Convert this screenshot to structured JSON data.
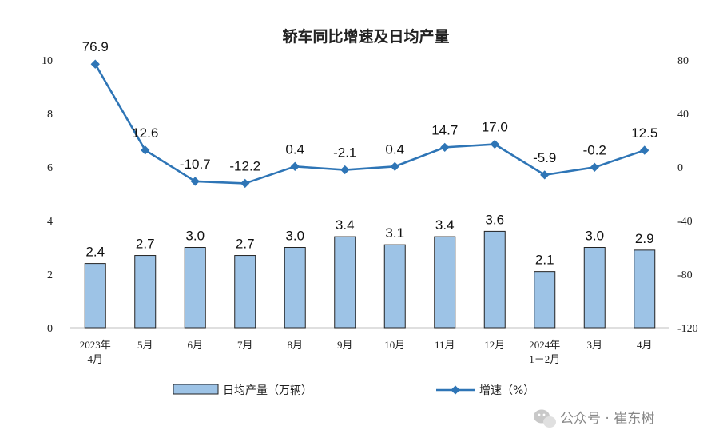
{
  "chart_data": {
    "type": "bar+line",
    "title": "轿车同比增速及日均产量",
    "categories": [
      [
        "2023年",
        "4月"
      ],
      [
        "5月"
      ],
      [
        "6月"
      ],
      [
        "7月"
      ],
      [
        "8月"
      ],
      [
        "9月"
      ],
      [
        "10月"
      ],
      [
        "11月"
      ],
      [
        "12月"
      ],
      [
        "2024年",
        "1－2月"
      ],
      [
        "3月"
      ],
      [
        "4月"
      ]
    ],
    "series": [
      {
        "name": "日均产量（万辆）",
        "type": "bar",
        "axis": "left",
        "color": "#9dc3e6",
        "values": [
          2.4,
          2.7,
          3.0,
          2.7,
          3.0,
          3.4,
          3.1,
          3.4,
          3.6,
          2.1,
          3.0,
          2.9
        ],
        "labels": [
          "2.4",
          "2.7",
          "3.0",
          "2.7",
          "3.0",
          "3.4",
          "3.1",
          "3.4",
          "3.6",
          "2.1",
          "3.0",
          "2.9"
        ]
      },
      {
        "name": "增速（%）",
        "type": "line",
        "axis": "right",
        "color": "#2e75b6",
        "values": [
          76.9,
          12.6,
          -10.7,
          -12.2,
          0.4,
          -2.1,
          0.4,
          14.7,
          17.0,
          -5.9,
          -0.2,
          12.5
        ],
        "labels": [
          "76.9",
          "12.6",
          "-10.7",
          "-12.2",
          "0.4",
          "-2.1",
          "0.4",
          "14.7",
          "17.0",
          "-5.9",
          "-0.2",
          "12.5"
        ]
      }
    ],
    "y_left": {
      "min": 0,
      "max": 10,
      "ticks": [
        "0",
        "2",
        "4",
        "6",
        "8",
        "10"
      ]
    },
    "y_right": {
      "min": -120,
      "max": 80,
      "ticks": [
        "-120",
        "-80",
        "-40",
        "0",
        "40",
        "80"
      ]
    },
    "grid": false,
    "legend_position": "bottom"
  },
  "watermark": {
    "text": "公众号 · 崔东树",
    "icon": "wechat-icon"
  }
}
